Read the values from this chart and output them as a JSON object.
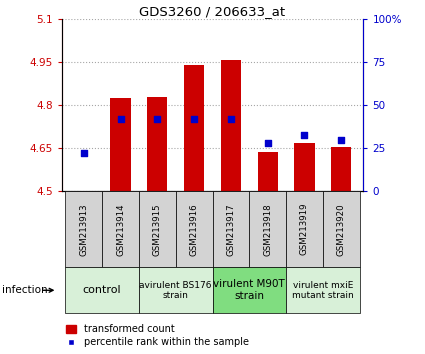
{
  "title": "GDS3260 / 206633_at",
  "samples": [
    "GSM213913",
    "GSM213914",
    "GSM213915",
    "GSM213916",
    "GSM213917",
    "GSM213918",
    "GSM213919",
    "GSM213920"
  ],
  "transformed_counts": [
    4.502,
    4.825,
    4.828,
    4.94,
    4.96,
    4.638,
    4.67,
    4.655
  ],
  "percentile_ranks": [
    22,
    42,
    42,
    42,
    42,
    28,
    33,
    30
  ],
  "ylim_left": [
    4.5,
    5.1
  ],
  "ylim_right": [
    0,
    100
  ],
  "yticks_left": [
    4.5,
    4.65,
    4.8,
    4.95,
    5.1
  ],
  "ytick_labels_left": [
    "4.5",
    "4.65",
    "4.8",
    "4.95",
    "5.1"
  ],
  "yticks_right": [
    0,
    25,
    50,
    75,
    100
  ],
  "ytick_labels_right": [
    "0",
    "25",
    "50",
    "75",
    "100%"
  ],
  "bar_color": "#cc0000",
  "dot_color": "#0000cc",
  "bar_bottom": 4.5,
  "groups": [
    {
      "label": "control",
      "indices": [
        0,
        1
      ],
      "color": "#d8f0d8",
      "fontsize": 8
    },
    {
      "label": "avirulent BS176\nstrain",
      "indices": [
        2,
        3
      ],
      "color": "#d8f0d8",
      "fontsize": 6.5
    },
    {
      "label": "virulent M90T\nstrain",
      "indices": [
        4,
        5
      ],
      "color": "#80dd80",
      "fontsize": 7.5
    },
    {
      "label": "virulent mxiE\nmutant strain",
      "indices": [
        6,
        7
      ],
      "color": "#d8f0d8",
      "fontsize": 6.5
    }
  ],
  "xlabel_infection": "infection",
  "legend_bar_label": "transformed count",
  "legend_dot_label": "percentile rank within the sample",
  "tick_color_left": "#cc0000",
  "tick_color_right": "#0000cc",
  "bg_label_row": "#d3d3d3",
  "grid_color": "#000000",
  "grid_alpha": 0.35,
  "grid_linestyle": ":"
}
